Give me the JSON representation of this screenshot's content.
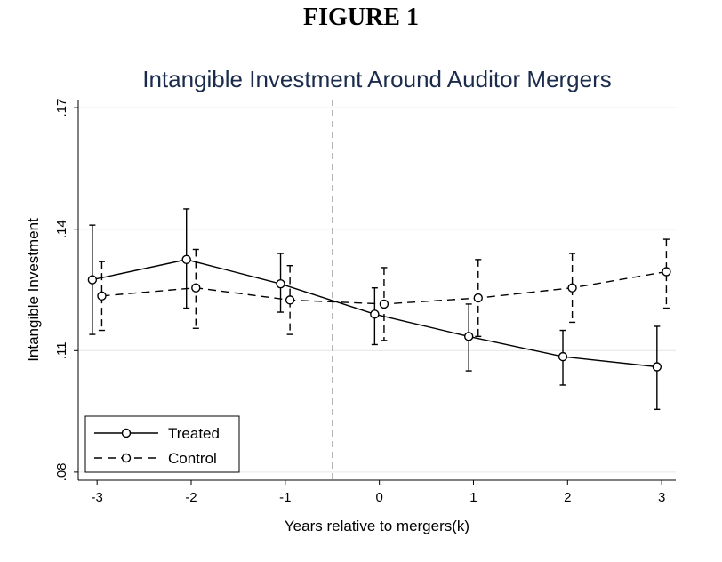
{
  "figure_heading": "FIGURE 1",
  "chart_data": {
    "type": "line",
    "title": "Intangible Investment Around Auditor Mergers",
    "xlabel": "Years relative to mergers(k)",
    "ylabel": "Intangible Investment",
    "x": [
      -3,
      -2,
      -1,
      0,
      1,
      2,
      3
    ],
    "x_tick_labels": [
      "-3",
      "-2",
      "-1",
      "0",
      "1",
      "2",
      "3"
    ],
    "xlim": [
      -3.2,
      3.15
    ],
    "y_ticks": [
      0.08,
      0.11,
      0.14,
      0.17
    ],
    "y_tick_labels": [
      ".08",
      ".11",
      ".14",
      ".17"
    ],
    "ylim": [
      0.078,
      0.172
    ],
    "grid": true,
    "reference_line_x": -0.5,
    "legend_position": "bottom-left",
    "series": [
      {
        "name": "Treated",
        "line_style": "solid",
        "values": [
          0.1275,
          0.1325,
          0.1265,
          0.119,
          0.1135,
          0.1085,
          0.106
        ],
        "ci_lower": [
          0.114,
          0.1205,
          0.1195,
          0.1115,
          0.105,
          0.1015,
          0.0955
        ],
        "ci_upper": [
          0.141,
          0.145,
          0.134,
          0.1255,
          0.1215,
          0.115,
          0.116
        ]
      },
      {
        "name": "Control",
        "line_style": "dashed",
        "values": [
          0.1235,
          0.1255,
          0.1225,
          0.1215,
          0.123,
          0.1255,
          0.1295
        ],
        "ci_lower": [
          0.115,
          0.1155,
          0.114,
          0.1125,
          0.1135,
          0.117,
          0.1205
        ],
        "ci_upper": [
          0.132,
          0.135,
          0.131,
          0.1305,
          0.1325,
          0.134,
          0.1375
        ]
      }
    ]
  }
}
